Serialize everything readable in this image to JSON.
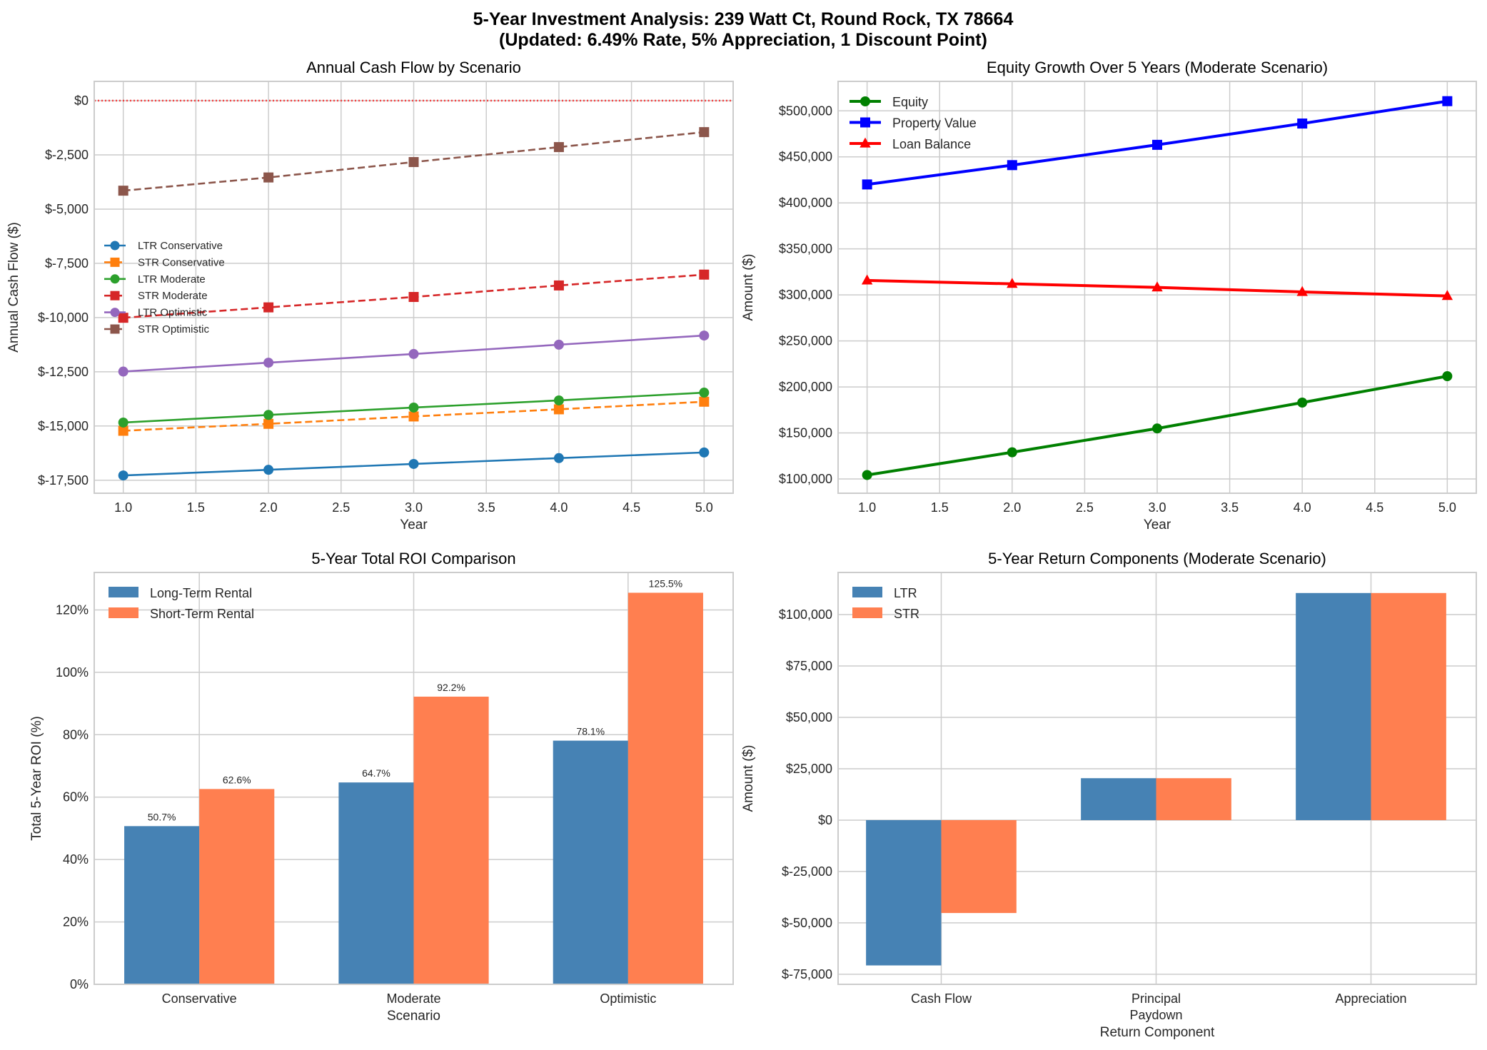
{
  "suptitle": {
    "line1": "5-Year Investment Analysis: 239 Watt Ct, Round Rock, TX 78664",
    "line2": "(Updated: 6.49% Rate, 5% Appreciation, 1 Discount Point)"
  },
  "chart_data": [
    {
      "type": "line",
      "title": "Annual Cash Flow by Scenario",
      "xlabel": "Year",
      "ylabel": "Annual Cash Flow ($)",
      "x": [
        1,
        2,
        3,
        4,
        5
      ],
      "xlim": [
        0.8,
        5.2
      ],
      "ylim": [
        -18100,
        890
      ],
      "xticks": [
        "1.0",
        "1.5",
        "2.0",
        "2.5",
        "3.0",
        "3.5",
        "4.0",
        "4.5",
        "5.0"
      ],
      "yticks": [
        "$0",
        "$-2,500",
        "$-5,000",
        "$-7,500",
        "$-10,000",
        "$-12,500",
        "$-15,000",
        "$-17,500"
      ],
      "reference_line": {
        "y": 0,
        "color": "#ff0000",
        "style": "dotted"
      },
      "grid": true,
      "legend_placement": "center-left",
      "series": [
        {
          "name": "LTR Conservative",
          "color": "#1f77b4",
          "marker": "circle",
          "dash": false,
          "values": [
            -17280,
            -17020,
            -16750,
            -16480,
            -16220
          ]
        },
        {
          "name": "STR Conservative",
          "color": "#ff7f0e",
          "marker": "square",
          "dash": true,
          "values": [
            -15220,
            -14900,
            -14560,
            -14230,
            -13880
          ]
        },
        {
          "name": "LTR Moderate",
          "color": "#2ca02c",
          "marker": "circle",
          "dash": false,
          "values": [
            -14840,
            -14490,
            -14150,
            -13820,
            -13460
          ]
        },
        {
          "name": "STR Moderate",
          "color": "#d62728",
          "marker": "square",
          "dash": true,
          "values": [
            -10010,
            -9530,
            -9050,
            -8520,
            -8020
          ]
        },
        {
          "name": "LTR Optimistic",
          "color": "#9467bd",
          "marker": "circle",
          "dash": false,
          "values": [
            -12490,
            -12080,
            -11680,
            -11250,
            -10830
          ]
        },
        {
          "name": "STR Optimistic",
          "color": "#8c564b",
          "marker": "square",
          "dash": true,
          "values": [
            -4150,
            -3540,
            -2830,
            -2140,
            -1450
          ]
        }
      ]
    },
    {
      "type": "line",
      "title": "Equity Growth Over 5 Years (Moderate Scenario)",
      "xlabel": "Year",
      "ylabel": "Amount ($)",
      "x": [
        1,
        2,
        3,
        4,
        5
      ],
      "xlim": [
        0.8,
        5.2
      ],
      "ylim": [
        84500,
        532000
      ],
      "xticks": [
        "1.0",
        "1.5",
        "2.0",
        "2.5",
        "3.0",
        "3.5",
        "4.0",
        "4.5",
        "5.0"
      ],
      "yticks": [
        "$100,000",
        "$150,000",
        "$200,000",
        "$250,000",
        "$300,000",
        "$350,000",
        "$400,000",
        "$450,000",
        "$500,000"
      ],
      "grid": true,
      "legend_placement": "top-left",
      "series": [
        {
          "name": "Equity",
          "color": "#008000",
          "marker": "circle",
          "values": [
            104300,
            129000,
            154900,
            183000,
            211700
          ]
        },
        {
          "name": "Property Value",
          "color": "#0000ff",
          "marker": "square",
          "values": [
            420000,
            441000,
            463050,
            486200,
            510500
          ]
        },
        {
          "name": "Loan Balance",
          "color": "#ff0000",
          "marker": "triangle",
          "values": [
            315700,
            312000,
            308150,
            303200,
            298800
          ]
        }
      ]
    },
    {
      "type": "bar",
      "title": "5-Year Total ROI Comparison",
      "xlabel": "Scenario",
      "ylabel": "Total 5-Year ROI (%)",
      "categories": [
        "Conservative",
        "Moderate",
        "Optimistic"
      ],
      "ylim": [
        0,
        132
      ],
      "yticks": [
        "0%",
        "20%",
        "40%",
        "60%",
        "80%",
        "100%",
        "120%"
      ],
      "grid": true,
      "legend_placement": "top-left",
      "series": [
        {
          "name": "Long-Term Rental",
          "color": "#4682b4",
          "values": [
            50.7,
            64.7,
            78.1
          ],
          "labels": [
            "50.7%",
            "64.7%",
            "78.1%"
          ]
        },
        {
          "name": "Short-Term Rental",
          "color": "#ff7f50",
          "values": [
            62.6,
            92.2,
            125.5
          ],
          "labels": [
            "62.6%",
            "92.2%",
            "125.5%"
          ]
        }
      ]
    },
    {
      "type": "bar",
      "title": "5-Year Return Components (Moderate Scenario)",
      "xlabel": "Return Component",
      "ylabel": "Amount ($)",
      "categories": [
        "Cash Flow",
        "Principal\nPaydown",
        "Appreciation"
      ],
      "ylim": [
        -79900,
        120500
      ],
      "yticks": [
        "$-75,000",
        "$-50,000",
        "$-25,000",
        "$0",
        "$25,000",
        "$50,000",
        "$75,000",
        "$100,000"
      ],
      "grid": true,
      "legend_placement": "top-left",
      "series": [
        {
          "name": "LTR",
          "color": "#4682b4",
          "values": [
            -70700,
            20400,
            110500
          ]
        },
        {
          "name": "STR",
          "color": "#ff7f50",
          "values": [
            -45200,
            20400,
            110500
          ]
        }
      ]
    }
  ]
}
